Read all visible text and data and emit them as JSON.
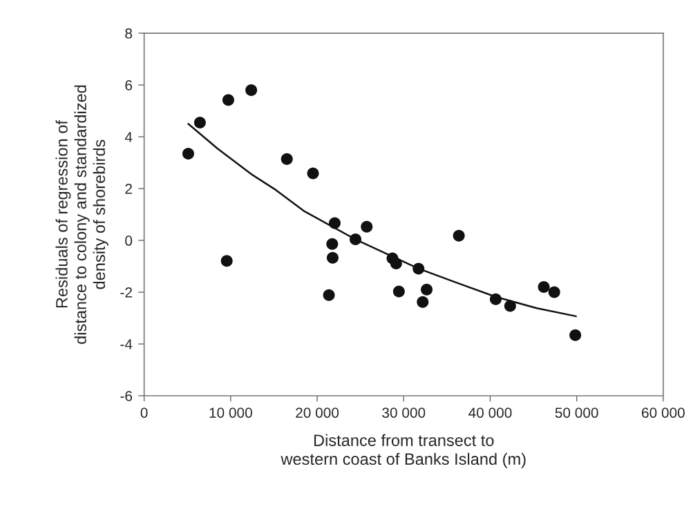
{
  "chart_data": {
    "type": "scatter",
    "xlabel": "Distance from transect to\nwestern coast of Banks Island (m)",
    "ylabel": "Residuals of regression of\ndistance to colony and standardized\ndensity of shorebirds",
    "series": [
      {
        "color": "#111111",
        "marker": "circle",
        "x": [
          5100,
          6450,
          9730,
          12380,
          16500,
          19520,
          22030,
          25730,
          21740,
          21790,
          21360,
          24430,
          28700,
          29130,
          29450,
          31720,
          32200,
          32660,
          36380,
          40640,
          42310,
          46200,
          47410,
          49840,
          9550
        ],
        "values": [
          3.35,
          4.55,
          5.42,
          5.8,
          3.14,
          2.59,
          0.67,
          0.53,
          -0.14,
          -0.67,
          -2.11,
          0.04,
          -0.69,
          -0.89,
          -1.97,
          -1.09,
          -2.38,
          -1.9,
          0.18,
          -2.27,
          -2.53,
          -1.8,
          -2.0,
          -3.66,
          -0.79
        ]
      },
      {
        "type": "line",
        "color": "#111111",
        "marker": "none",
        "line_style": "solid",
        "x": [
          5100,
          8470,
          12510,
          15210,
          18450,
          24430,
          31720,
          36250,
          40640,
          45410,
          49920
        ],
        "values": [
          4.5,
          3.55,
          2.53,
          1.95,
          1.14,
          0.04,
          -1.09,
          -1.65,
          -2.18,
          -2.62,
          -2.93
        ]
      }
    ],
    "xlim": [
      0,
      60000
    ],
    "xticks": [
      0,
      {
        "value": 10000,
        "label": "10 000"
      },
      {
        "value": 20000,
        "label": "20 000"
      },
      {
        "value": 30000,
        "label": "30 000"
      },
      {
        "value": 40000,
        "label": "40 000"
      },
      {
        "value": 50000,
        "label": "50 000"
      },
      {
        "value": 60000,
        "label": "60 000"
      }
    ],
    "ylim": [
      -6,
      8
    ],
    "yticks": [
      -6,
      -4,
      -2,
      0,
      2,
      4,
      6,
      8
    ],
    "grid": false,
    "legend": false
  }
}
